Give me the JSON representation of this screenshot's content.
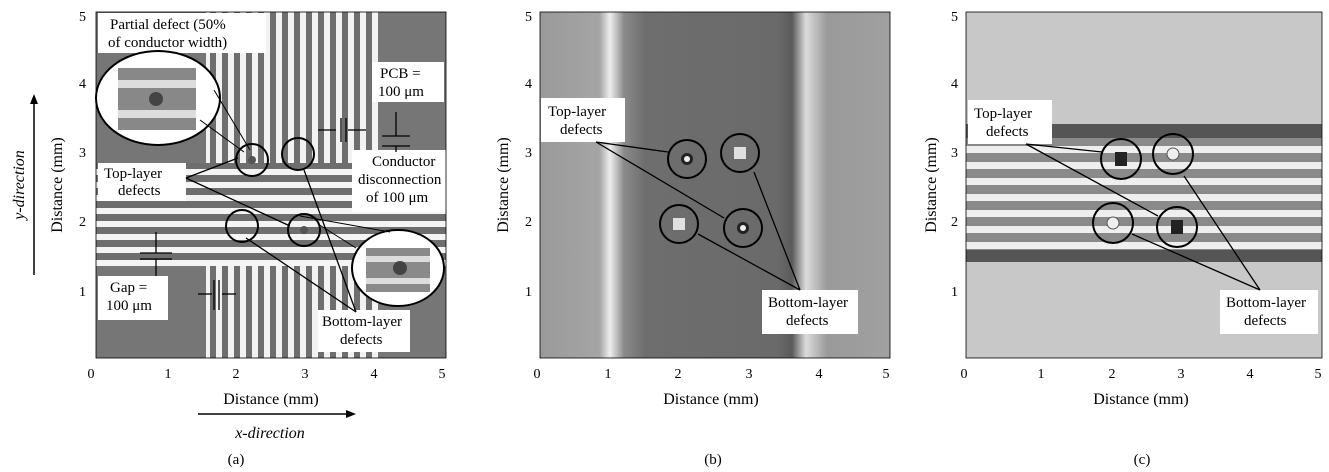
{
  "panels": [
    {
      "caption": "(a)",
      "x_ticks": [
        "0",
        "1",
        "2",
        "3",
        "4",
        "5"
      ],
      "y_ticks": [
        "1",
        "2",
        "3",
        "4",
        "5"
      ],
      "x_label": "Distance (mm)",
      "y_label": "Distance (mm)",
      "x_direction": "x-direction",
      "y_direction": "y-direction",
      "annotations": {
        "partial_defect_1": "Partial defect (50%",
        "partial_defect_2": "of conductor width)",
        "pcb_1": "PCB =",
        "pcb_2": "100 μm",
        "top_defects_1": "Top-layer",
        "top_defects_2": "defects",
        "conductor_1": "Conductor",
        "conductor_2": "disconnection",
        "conductor_3": "of 100 μm",
        "gap_1": "Gap =",
        "gap_2": "100 μm",
        "bottom_defects_1": "Bottom-layer",
        "bottom_defects_2": "defects"
      }
    },
    {
      "caption": "(b)",
      "x_ticks": [
        "0",
        "1",
        "2",
        "3",
        "4",
        "5"
      ],
      "y_ticks": [
        "1",
        "2",
        "3",
        "4",
        "5"
      ],
      "x_label": "Distance (mm)",
      "y_label": "Distance (mm)",
      "annotations": {
        "top_defects_1": "Top-layer",
        "top_defects_2": "defects",
        "bottom_defects_1": "Bottom-layer",
        "bottom_defects_2": "defects"
      }
    },
    {
      "caption": "(c)",
      "x_ticks": [
        "0",
        "1",
        "2",
        "3",
        "4",
        "5"
      ],
      "y_ticks": [
        "1",
        "2",
        "3",
        "4",
        "5"
      ],
      "x_label": "Distance (mm)",
      "y_label": "Distance (mm)",
      "annotations": {
        "top_defects_1": "Top-layer",
        "top_defects_2": "defects",
        "bottom_defects_1": "Bottom-layer",
        "bottom_defects_2": "defects"
      }
    }
  ]
}
